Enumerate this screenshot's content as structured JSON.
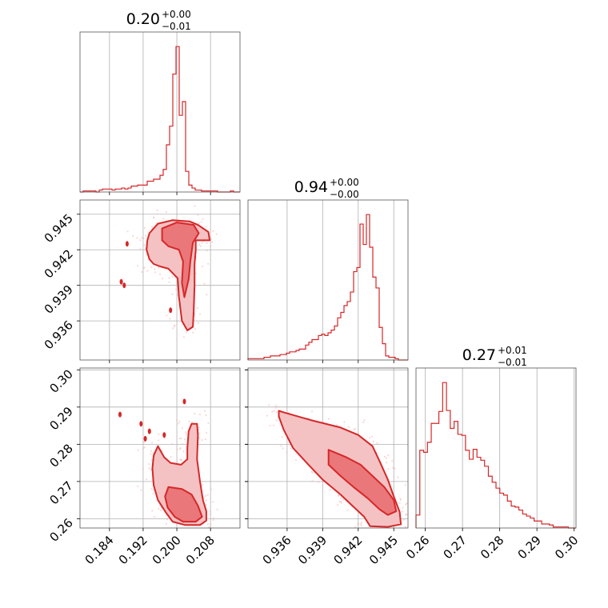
{
  "colors": {
    "accent": "#d62728",
    "light": "#f4c2c3",
    "medium": "#e86a6d",
    "grid": "#b0b0b0"
  },
  "titles": {
    "p0": {
      "value": "0.20",
      "plus": "+0.00",
      "minus": "−0.01"
    },
    "p1": {
      "value": "0.94",
      "plus": "+0.00",
      "minus": "−0.00"
    },
    "p2": {
      "value": "0.27",
      "plus": "+0.01",
      "minus": "−0.01"
    }
  },
  "chart_data": {
    "type": "corner",
    "grid": true,
    "parameters": [
      {
        "range": [
          0.177,
          0.215
        ],
        "ticks": [
          "0.184",
          "0.192",
          "0.200",
          "0.208"
        ]
      },
      {
        "range": [
          0.9327,
          0.9462
        ],
        "ticks": [
          "0.936",
          "0.939",
          "0.942",
          "0.945"
        ]
      },
      {
        "range": [
          0.2575,
          0.3005
        ],
        "ticks": [
          "0.26",
          "0.27",
          "0.28",
          "0.29",
          "0.30"
        ]
      }
    ],
    "histograms": [
      {
        "param": 0,
        "bins": [
          0.177,
          0.215
        ],
        "counts": [
          0,
          1,
          1,
          1,
          1,
          0,
          2,
          3,
          3,
          3,
          2,
          3,
          3,
          4,
          3,
          4,
          6,
          6,
          7,
          7,
          7,
          11,
          11,
          13,
          13,
          17,
          23,
          48,
          67,
          120,
          148,
          78,
          92,
          21,
          7,
          4,
          2,
          2,
          1,
          1,
          1,
          1,
          1,
          0,
          0,
          0,
          0,
          1,
          0,
          0
        ]
      },
      {
        "param": 1,
        "bins": [
          0.9327,
          0.9462
        ],
        "counts": [
          1,
          1,
          1,
          1,
          1,
          2,
          2,
          3,
          3,
          3,
          4,
          4,
          5,
          6,
          6,
          7,
          8,
          8,
          11,
          13,
          15,
          15,
          18,
          19,
          18,
          20,
          22,
          25,
          31,
          35,
          40,
          43,
          50,
          65,
          68,
          100,
          85,
          107,
          83,
          61,
          53,
          24,
          12,
          3,
          2,
          2,
          1,
          0,
          0,
          0
        ]
      },
      {
        "param": 2,
        "bins": [
          0.2575,
          0.3005
        ],
        "counts": [
          13,
          78,
          76,
          86,
          105,
          105,
          117,
          146,
          118,
          100,
          107,
          94,
          93,
          78,
          69,
          79,
          71,
          68,
          62,
          52,
          46,
          40,
          35,
          33,
          27,
          22,
          21,
          18,
          14,
          12,
          10,
          7,
          7,
          4,
          4,
          3,
          1,
          1,
          1,
          1,
          0,
          0
        ]
      }
    ],
    "scatter_panels": [
      {
        "x_param": 0,
        "y_param": 1,
        "contours": [
          {
            "level": "outer",
            "points": [
              [
                0.1935,
                0.9434
              ],
              [
                0.1955,
                0.9442
              ],
              [
                0.199,
                0.9445
              ],
              [
                0.203,
                0.9444
              ],
              [
                0.205,
                0.9441
              ],
              [
                0.2075,
                0.9435
              ],
              [
                0.2078,
                0.9428
              ],
              [
                0.2045,
                0.9428
              ],
              [
                0.2045,
                0.942
              ],
              [
                0.2042,
                0.9408
              ],
              [
                0.2042,
                0.939
              ],
              [
                0.204,
                0.9368
              ],
              [
                0.2038,
                0.9355
              ],
              [
                0.2025,
                0.9352
              ],
              [
                0.2012,
                0.936
              ],
              [
                0.2005,
                0.938
              ],
              [
                0.2002,
                0.9396
              ],
              [
                0.198,
                0.9404
              ],
              [
                0.196,
                0.9406
              ],
              [
                0.1945,
                0.9408
              ],
              [
                0.1935,
                0.9412
              ],
              [
                0.1928,
                0.942
              ],
              [
                0.193,
                0.9428
              ]
            ]
          },
          {
            "level": "inner",
            "points": [
              [
                0.1965,
                0.9438
              ],
              [
                0.2,
                0.9443
              ],
              [
                0.204,
                0.9441
              ],
              [
                0.2052,
                0.9434
              ],
              [
                0.2038,
                0.9426
              ],
              [
                0.2032,
                0.941
              ],
              [
                0.2028,
                0.9395
              ],
              [
                0.2018,
                0.938
              ],
              [
                0.2012,
                0.9392
              ],
              [
                0.2015,
                0.941
              ],
              [
                0.2005,
                0.942
              ],
              [
                0.198,
                0.9423
              ],
              [
                0.1965,
                0.9428
              ]
            ]
          }
        ],
        "islands": [
          [
            0.1882,
            0.9425
          ],
          [
            0.1868,
            0.9393
          ],
          [
            0.1875,
            0.939
          ],
          [
            0.1985,
            0.9369
          ]
        ]
      },
      {
        "x_param": 0,
        "y_param": 2,
        "contours": [
          {
            "level": "outer",
            "points": [
              [
                0.1955,
                0.2795
              ],
              [
                0.197,
                0.2765
              ],
              [
                0.1985,
                0.275
              ],
              [
                0.201,
                0.2745
              ],
              [
                0.2025,
                0.276
              ],
              [
                0.2025,
                0.279
              ],
              [
                0.2028,
                0.2835
              ],
              [
                0.2035,
                0.2855
              ],
              [
                0.2048,
                0.2855
              ],
              [
                0.205,
                0.2825
              ],
              [
                0.2048,
                0.276
              ],
              [
                0.2055,
                0.27
              ],
              [
                0.2062,
                0.265
              ],
              [
                0.207,
                0.262
              ],
              [
                0.207,
                0.2595
              ],
              [
                0.2055,
                0.2583
              ],
              [
                0.202,
                0.2583
              ],
              [
                0.199,
                0.2592
              ],
              [
                0.1975,
                0.2615
              ],
              [
                0.1955,
                0.265
              ],
              [
                0.1945,
                0.269
              ],
              [
                0.1942,
                0.2735
              ],
              [
                0.1945,
                0.277
              ]
            ]
          },
          {
            "level": "inner",
            "points": [
              [
                0.198,
                0.2685
              ],
              [
                0.2012,
                0.268
              ],
              [
                0.2035,
                0.2665
              ],
              [
                0.205,
                0.2635
              ],
              [
                0.206,
                0.2605
              ],
              [
                0.2045,
                0.2592
              ],
              [
                0.2015,
                0.2592
              ],
              [
                0.1995,
                0.2605
              ],
              [
                0.1978,
                0.263
              ],
              [
                0.1972,
                0.266
              ]
            ]
          }
        ],
        "islands": [
          [
            0.1865,
            0.288
          ],
          [
            0.1915,
            0.2855
          ],
          [
            0.1935,
            0.2835
          ],
          [
            0.1925,
            0.2815
          ],
          [
            0.197,
            0.2825
          ],
          [
            0.2018,
            0.2915
          ]
        ]
      },
      {
        "x_param": 1,
        "y_param": 2,
        "contours": [
          {
            "level": "outer",
            "points": [
              [
                0.9353,
                0.289
              ],
              [
                0.9358,
                0.2885
              ],
              [
                0.938,
                0.2865
              ],
              [
                0.9405,
                0.2845
              ],
              [
                0.942,
                0.2825
              ],
              [
                0.9432,
                0.2795
              ],
              [
                0.9438,
                0.2755
              ],
              [
                0.9445,
                0.2705
              ],
              [
                0.945,
                0.266
              ],
              [
                0.9455,
                0.2618
              ],
              [
                0.9456,
                0.2585
              ],
              [
                0.9445,
                0.2578
              ],
              [
                0.943,
                0.258
              ],
              [
                0.9425,
                0.2605
              ],
              [
                0.9415,
                0.2635
              ],
              [
                0.9405,
                0.2665
              ],
              [
                0.939,
                0.2705
              ],
              [
                0.9378,
                0.2745
              ],
              [
                0.9365,
                0.279
              ],
              [
                0.9357,
                0.284
              ],
              [
                0.9353,
                0.2875
              ]
            ]
          },
          {
            "level": "inner",
            "points": [
              [
                0.9395,
                0.2785
              ],
              [
                0.941,
                0.2765
              ],
              [
                0.9422,
                0.2745
              ],
              [
                0.9432,
                0.2715
              ],
              [
                0.9442,
                0.2685
              ],
              [
                0.945,
                0.265
              ],
              [
                0.9452,
                0.262
              ],
              [
                0.9445,
                0.261
              ],
              [
                0.9438,
                0.2625
              ],
              [
                0.9428,
                0.2655
              ],
              [
                0.9416,
                0.2685
              ],
              [
                0.9405,
                0.2715
              ],
              [
                0.9395,
                0.2745
              ]
            ]
          }
        ],
        "islands": []
      }
    ]
  }
}
